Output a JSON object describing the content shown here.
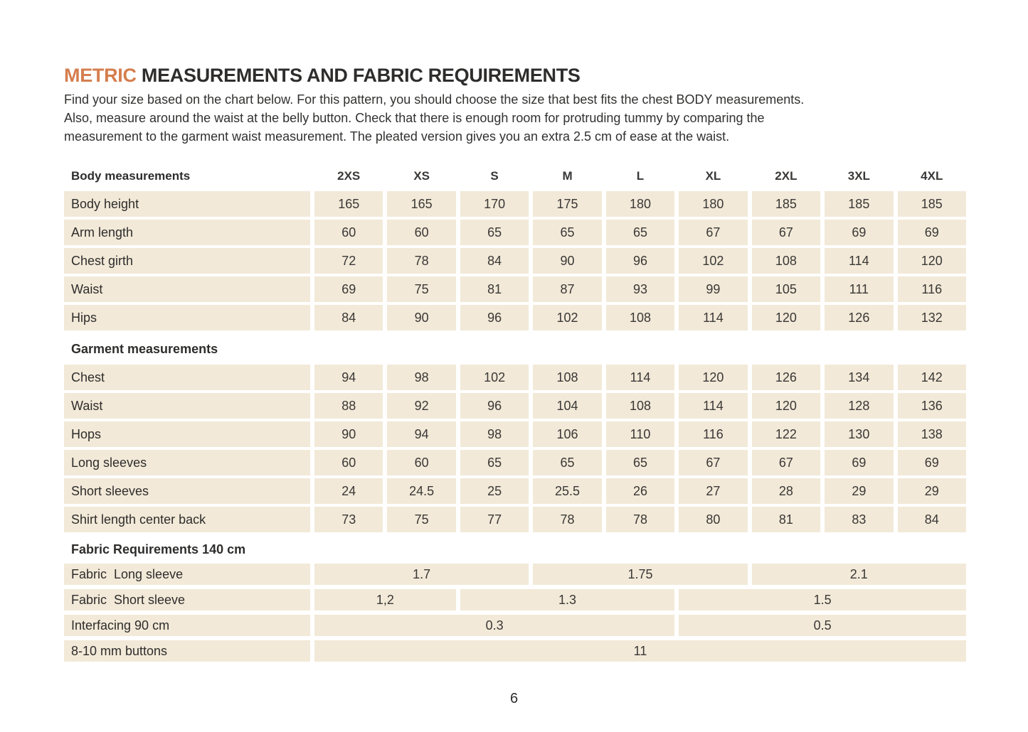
{
  "colors": {
    "accent_orange": "#d57e4e",
    "cell_beige": "#f2e9d8",
    "text_dark": "#2e2d2c",
    "page_bg": "#ffffff"
  },
  "header": {
    "title_highlight": "METRIC",
    "title_rest": " MEASUREMENTS AND FABRIC REQUIREMENTS",
    "intro_lines": [
      "Find your size based on the chart below. For this pattern, you should choose the size that best fits the chest BODY measurements.",
      "Also, measure around the waist at the belly button. Check that there is enough room for protruding tummy by comparing the",
      "measurement to the garment waist measurement. The pleated version gives you an extra 2.5 cm of ease at the waist."
    ]
  },
  "table": {
    "corner_label": "Body measurements",
    "sizes": [
      "2XS",
      "XS",
      "S",
      "M",
      "L",
      "XL",
      "2XL",
      "3XL",
      "4XL"
    ],
    "body_rows": [
      {
        "label": "Body height",
        "values": [
          "165",
          "165",
          "170",
          "175",
          "180",
          "180",
          "185",
          "185",
          "185"
        ]
      },
      {
        "label": "Arm length",
        "values": [
          "60",
          "60",
          "65",
          "65",
          "65",
          "67",
          "67",
          "69",
          "69"
        ]
      },
      {
        "label": "Chest girth",
        "values": [
          "72",
          "78",
          "84",
          "90",
          "96",
          "102",
          "108",
          "114",
          "120"
        ]
      },
      {
        "label": "Waist",
        "values": [
          "69",
          "75",
          "81",
          "87",
          "93",
          "99",
          "105",
          "111",
          "116"
        ]
      },
      {
        "label": "Hips",
        "values": [
          "84",
          "90",
          "96",
          "102",
          "108",
          "114",
          "120",
          "126",
          "132"
        ]
      }
    ],
    "garment_section_label": "Garment measurements",
    "garment_rows": [
      {
        "label": "Chest",
        "values": [
          "94",
          "98",
          "102",
          "108",
          "114",
          "120",
          "126",
          "134",
          "142"
        ]
      },
      {
        "label": "Waist",
        "values": [
          "88",
          "92",
          "96",
          "104",
          "108",
          "114",
          "120",
          "128",
          "136"
        ]
      },
      {
        "label": "Hops",
        "values": [
          "90",
          "94",
          "98",
          "106",
          "110",
          "116",
          "122",
          "130",
          "138"
        ]
      },
      {
        "label": "Long sleeves",
        "values": [
          "60",
          "60",
          "65",
          "65",
          "65",
          "67",
          "67",
          "69",
          "69"
        ]
      },
      {
        "label": "Short sleeves",
        "values": [
          "24",
          "24.5",
          "25",
          "25.5",
          "26",
          "27",
          "28",
          "29",
          "29"
        ]
      },
      {
        "label": "Shirt length center back",
        "values": [
          "73",
          "75",
          "77",
          "78",
          "78",
          "80",
          "81",
          "83",
          "84"
        ]
      }
    ],
    "fabric_section_label": "Fabric Requirements 140 cm",
    "fabric_rows": [
      {
        "label": "Fabric  Long sleeve",
        "cells": [
          {
            "value": "1.7",
            "span": 3
          },
          {
            "value": "1.75",
            "span": 3
          },
          {
            "value": "2.1",
            "span": 3
          }
        ]
      },
      {
        "label": "Fabric  Short sleeve",
        "cells": [
          {
            "value": "1,2",
            "span": 2
          },
          {
            "value": "1.3",
            "span": 3
          },
          {
            "value": "1.5",
            "span": 4
          }
        ]
      },
      {
        "label": "Interfacing 90 cm",
        "cells": [
          {
            "value": "0.3",
            "span": 5
          },
          {
            "value": "0.5",
            "span": 4
          }
        ]
      },
      {
        "label": "8-10 mm buttons",
        "cells": [
          {
            "value": "11",
            "span": 9
          }
        ]
      }
    ]
  },
  "footer": {
    "page_number": "6"
  }
}
